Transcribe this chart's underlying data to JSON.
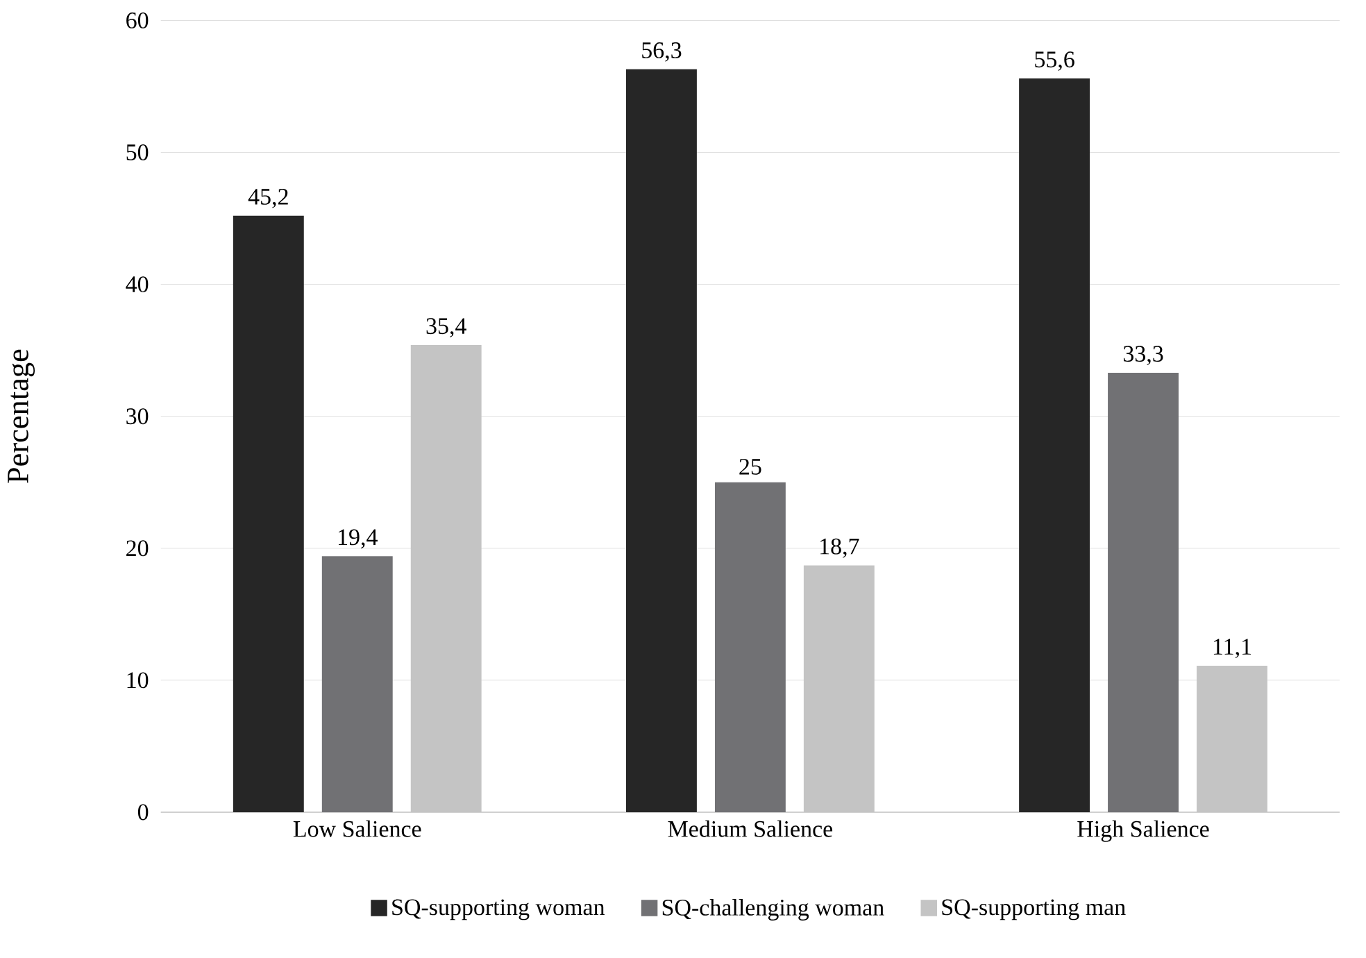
{
  "chart_data": {
    "type": "bar",
    "ylabel": "Percentage",
    "categories": [
      "Low Salience",
      "Medium Salience",
      "High Salience"
    ],
    "series": [
      {
        "name": "SQ-supporting woman",
        "color": "#262626",
        "values": [
          45.2,
          56.3,
          55.6
        ],
        "value_labels": [
          "45,2",
          "56,3",
          "55,6"
        ]
      },
      {
        "name": "SQ-challenging woman",
        "color": "#717174",
        "values": [
          19.4,
          25,
          33.3
        ],
        "value_labels": [
          "19,4",
          "25",
          "33,3"
        ]
      },
      {
        "name": "SQ-supporting man",
        "color": "#c4c4c4",
        "values": [
          35.4,
          18.7,
          11.1
        ],
        "value_labels": [
          "35,4",
          "18,7",
          "11,1"
        ]
      }
    ],
    "ylim": [
      0,
      60
    ],
    "yticks": [
      0,
      10,
      20,
      30,
      40,
      50,
      60
    ],
    "grid": "y",
    "legend": "bottom"
  }
}
